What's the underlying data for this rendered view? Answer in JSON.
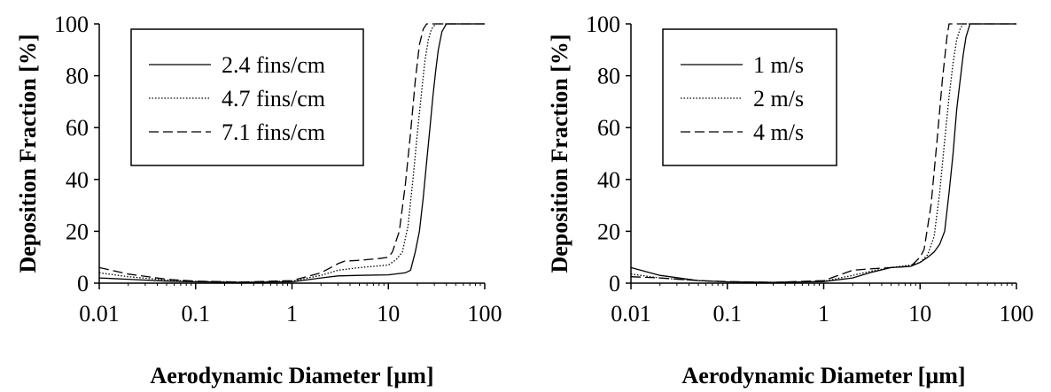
{
  "chart_data": [
    {
      "type": "line",
      "xlabel": "Aerodynamic Diameter [µm]",
      "ylabel": "Deposition Fraction [%]",
      "x_scale": "log",
      "xlim": [
        0.01,
        100
      ],
      "ylim": [
        0,
        100
      ],
      "x_ticks": [
        "0.01",
        "0.1",
        "1",
        "10",
        "100"
      ],
      "y_ticks": [
        "0",
        "20",
        "40",
        "60",
        "80",
        "100"
      ],
      "grid": false,
      "legend_position": "top-left",
      "series": [
        {
          "name": "2.4 fins/cm",
          "style": "solid",
          "points": [
            [
              0.01,
              2
            ],
            [
              0.02,
              1.5
            ],
            [
              0.05,
              0.8
            ],
            [
              0.1,
              0.5
            ],
            [
              0.3,
              0.3
            ],
            [
              1,
              0.5
            ],
            [
              2,
              2
            ],
            [
              3,
              2.8
            ],
            [
              5,
              3
            ],
            [
              10,
              3.2
            ],
            [
              15,
              4
            ],
            [
              17,
              5
            ],
            [
              19,
              12
            ],
            [
              21,
              20
            ],
            [
              23,
              33
            ],
            [
              25,
              47
            ],
            [
              27,
              60
            ],
            [
              29,
              72
            ],
            [
              31,
              82
            ],
            [
              33,
              90
            ],
            [
              36,
              97
            ],
            [
              40,
              100
            ],
            [
              100,
              100
            ]
          ]
        },
        {
          "name": "4.7 fins/cm",
          "style": "dotted",
          "points": [
            [
              0.01,
              4
            ],
            [
              0.02,
              2.5
            ],
            [
              0.05,
              1.2
            ],
            [
              0.1,
              0.7
            ],
            [
              0.3,
              0.4
            ],
            [
              1,
              0.8
            ],
            [
              2,
              3
            ],
            [
              3,
              5
            ],
            [
              5,
              6
            ],
            [
              10,
              7
            ],
            [
              12,
              9
            ],
            [
              14,
              12
            ],
            [
              16,
              22
            ],
            [
              18,
              40
            ],
            [
              20,
              58
            ],
            [
              22,
              73
            ],
            [
              24,
              86
            ],
            [
              26,
              94
            ],
            [
              28,
              98
            ],
            [
              31,
              100
            ],
            [
              100,
              100
            ]
          ]
        },
        {
          "name": "7.1 fins/cm",
          "style": "dashed",
          "points": [
            [
              0.01,
              6
            ],
            [
              0.02,
              3.5
            ],
            [
              0.05,
              1.5
            ],
            [
              0.1,
              0.8
            ],
            [
              0.3,
              0.4
            ],
            [
              1,
              1
            ],
            [
              2,
              4
            ],
            [
              3,
              7.5
            ],
            [
              3.5,
              8.5
            ],
            [
              5,
              8.8
            ],
            [
              8,
              9.5
            ],
            [
              10,
              10
            ],
            [
              11,
              12
            ],
            [
              13,
              20
            ],
            [
              15,
              38
            ],
            [
              17,
              58
            ],
            [
              19,
              78
            ],
            [
              21,
              92
            ],
            [
              23,
              98
            ],
            [
              25,
              100
            ],
            [
              100,
              100
            ]
          ]
        }
      ]
    },
    {
      "type": "line",
      "xlabel": "Aerodynamic Diameter [µm]",
      "ylabel": "Deposition Fraction [%]",
      "x_scale": "log",
      "xlim": [
        0.01,
        100
      ],
      "ylim": [
        0,
        100
      ],
      "x_ticks": [
        "0.01",
        "0.1",
        "1",
        "10",
        "100"
      ],
      "y_ticks": [
        "0",
        "20",
        "40",
        "60",
        "80",
        "100"
      ],
      "grid": false,
      "legend_position": "top-left",
      "series": [
        {
          "name": "1 m/s",
          "style": "solid",
          "points": [
            [
              0.01,
              6
            ],
            [
              0.02,
              3
            ],
            [
              0.05,
              1
            ],
            [
              0.1,
              0.5
            ],
            [
              0.3,
              0.3
            ],
            [
              1,
              0.6
            ],
            [
              2,
              2
            ],
            [
              3,
              4
            ],
            [
              5,
              6
            ],
            [
              8,
              6.5
            ],
            [
              10,
              8
            ],
            [
              12,
              10
            ],
            [
              14,
              12
            ],
            [
              16,
              15
            ],
            [
              18,
              20
            ],
            [
              20,
              35
            ],
            [
              22,
              50
            ],
            [
              24,
              67
            ],
            [
              26,
              78
            ],
            [
              28,
              88
            ],
            [
              30,
              95
            ],
            [
              33,
              100
            ],
            [
              100,
              100
            ]
          ]
        },
        {
          "name": "2 m/s",
          "style": "dotted",
          "points": [
            [
              0.01,
              3.5
            ],
            [
              0.02,
              2
            ],
            [
              0.05,
              1
            ],
            [
              0.1,
              0.5
            ],
            [
              0.3,
              0.3
            ],
            [
              1,
              0.7
            ],
            [
              2,
              3
            ],
            [
              3,
              4.5
            ],
            [
              5,
              6
            ],
            [
              8,
              7
            ],
            [
              10,
              8
            ],
            [
              12,
              11
            ],
            [
              14,
              18
            ],
            [
              16,
              35
            ],
            [
              18,
              55
            ],
            [
              20,
              72
            ],
            [
              22,
              85
            ],
            [
              24,
              94
            ],
            [
              26,
              98
            ],
            [
              28,
              100
            ],
            [
              100,
              100
            ]
          ]
        },
        {
          "name": "4 m/s",
          "style": "dashed",
          "points": [
            [
              0.01,
              2.5
            ],
            [
              0.02,
              2
            ],
            [
              0.05,
              1
            ],
            [
              0.1,
              0.6
            ],
            [
              0.3,
              0.3
            ],
            [
              1,
              1
            ],
            [
              2,
              5
            ],
            [
              3,
              5.5
            ],
            [
              5,
              6
            ],
            [
              8,
              6.5
            ],
            [
              10,
              10
            ],
            [
              11,
              13
            ],
            [
              13,
              30
            ],
            [
              15,
              55
            ],
            [
              17,
              78
            ],
            [
              19,
              95
            ],
            [
              20,
              100
            ],
            [
              100,
              100
            ]
          ]
        }
      ]
    }
  ]
}
